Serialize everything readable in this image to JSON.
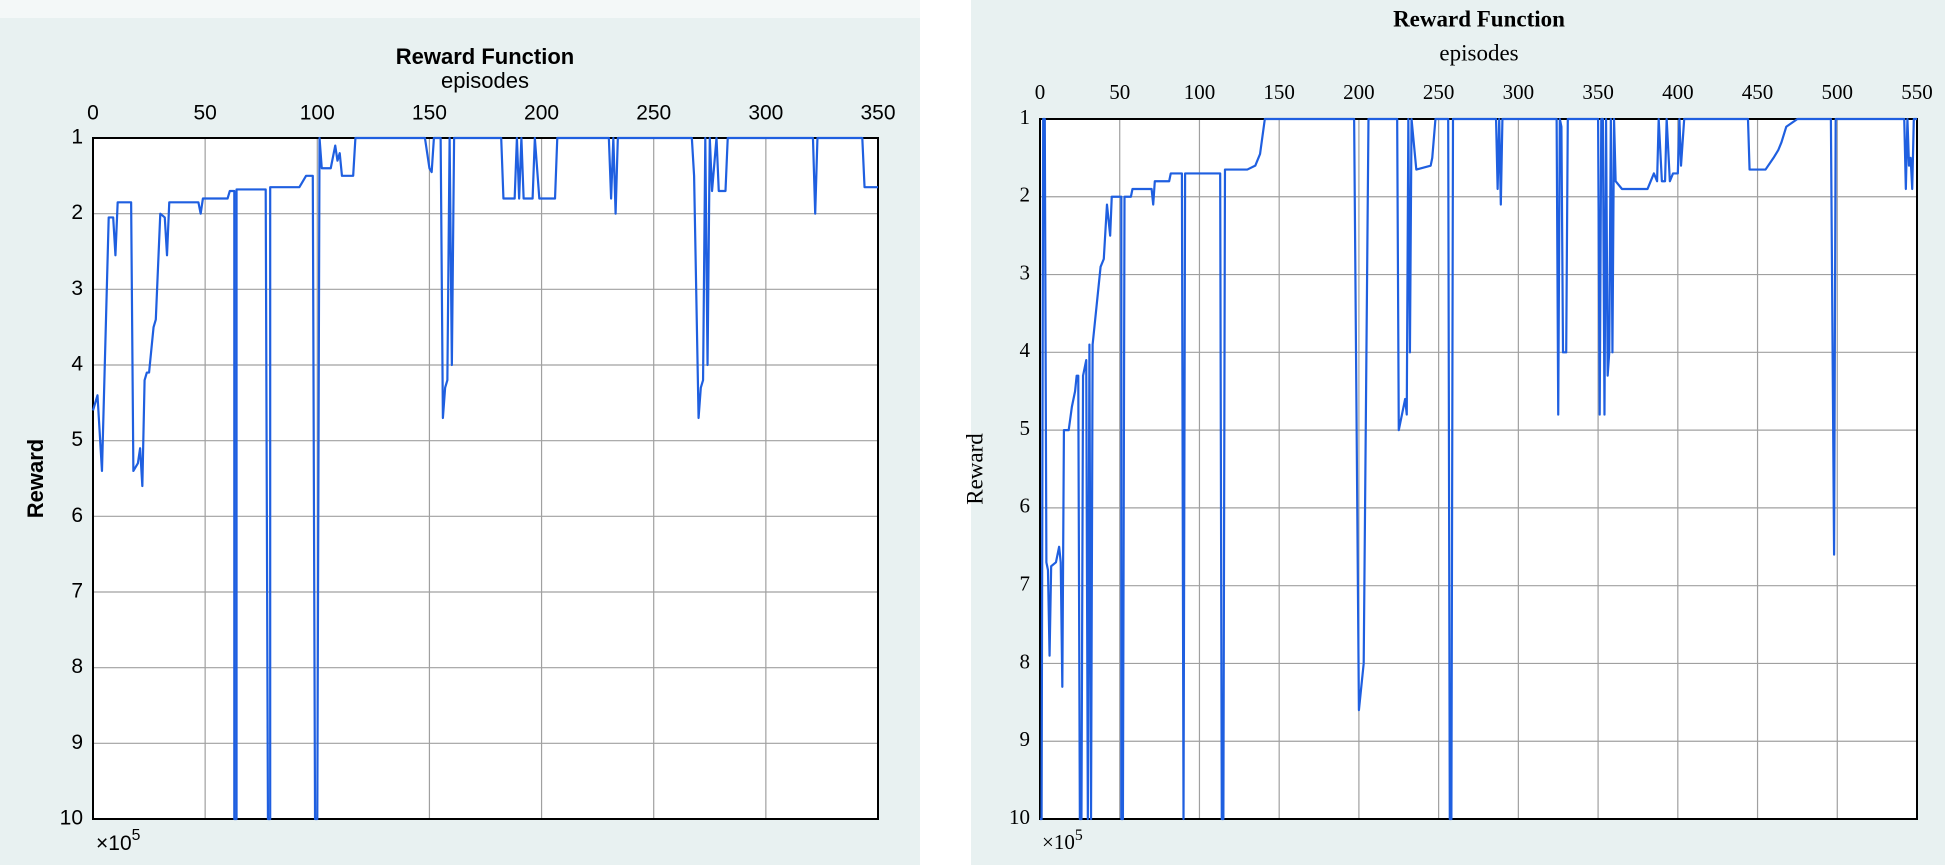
{
  "chart_data": [
    {
      "type": "line",
      "title": "Reward Function",
      "x_label": "episodes",
      "y_label": "Reward",
      "multiplier": {
        "base": "×10",
        "exponent": "5"
      },
      "xlim": [
        0,
        350
      ],
      "xticks": [
        0,
        50,
        100,
        150,
        200,
        250,
        300,
        350
      ],
      "ylim": [
        1,
        10
      ],
      "yticks": [
        1,
        2,
        3,
        4,
        5,
        6,
        7,
        8,
        9,
        10
      ],
      "y_reversed": true,
      "x_axis_top": true,
      "grid": true,
      "color": "#1f5fe0",
      "x": [
        0,
        2,
        4,
        7,
        9,
        10,
        11,
        17,
        18,
        20,
        21,
        22,
        23,
        24,
        25,
        27,
        28,
        30,
        32,
        33,
        34,
        47,
        48,
        49,
        60,
        61,
        63,
        63,
        64,
        64,
        77,
        78,
        79,
        79,
        92,
        93,
        95,
        98,
        99,
        100,
        101,
        102,
        106,
        108,
        109,
        110,
        111,
        116,
        117,
        148,
        150,
        151,
        152,
        155,
        156,
        157,
        158,
        159,
        160,
        161,
        182,
        183,
        188,
        189,
        190,
        191,
        192,
        196,
        197,
        199,
        206,
        207,
        230,
        231,
        232,
        233,
        234,
        267,
        268,
        270,
        271,
        272,
        273,
        274,
        275,
        276,
        278,
        279,
        282,
        283,
        321,
        322,
        323,
        343,
        344,
        350
      ],
      "values": [
        4.6,
        4.4,
        5.4,
        2.05,
        2.05,
        2.55,
        1.85,
        1.85,
        5.4,
        5.3,
        5.1,
        5.6,
        4.2,
        4.1,
        4.1,
        3.5,
        3.4,
        2.0,
        2.05,
        2.55,
        1.85,
        1.85,
        2.0,
        1.8,
        1.8,
        1.7,
        1.7,
        10,
        10,
        1.68,
        1.68,
        10,
        10,
        1.65,
        1.65,
        1.6,
        1.5,
        1.5,
        10,
        10,
        1.0,
        1.4,
        1.4,
        1.1,
        1.3,
        1.2,
        1.5,
        1.5,
        1.0,
        1.0,
        1.4,
        1.45,
        1.0,
        1.0,
        4.7,
        4.3,
        4.2,
        1.0,
        4.0,
        1.0,
        1.0,
        1.8,
        1.8,
        1.0,
        1.8,
        1.0,
        1.8,
        1.8,
        1.0,
        1.8,
        1.8,
        1.0,
        1.0,
        1.8,
        1.0,
        2.0,
        1.0,
        1.0,
        1.5,
        4.7,
        4.3,
        4.2,
        1.0,
        4.0,
        1.0,
        1.7,
        1.0,
        1.7,
        1.7,
        1.0,
        1.0,
        2.0,
        1.0,
        1.0,
        1.65,
        1.65
      ]
    },
    {
      "type": "line",
      "title": "Reward Function",
      "x_label": "episodes",
      "y_label": "Reward",
      "multiplier": {
        "base": "×10",
        "exponent": "5"
      },
      "xlim": [
        0,
        550
      ],
      "xticks": [
        0,
        50,
        100,
        150,
        200,
        250,
        300,
        350,
        400,
        450,
        500,
        550
      ],
      "ylim": [
        1,
        10
      ],
      "yticks": [
        1,
        2,
        3,
        4,
        5,
        6,
        7,
        8,
        9,
        10
      ],
      "y_reversed": true,
      "x_axis_top": true,
      "grid": true,
      "color": "#1f5fe0",
      "x": [
        0,
        1,
        2,
        3,
        4,
        5,
        6,
        7,
        10,
        12,
        13,
        14,
        15,
        18,
        20,
        22,
        23,
        24,
        25,
        26,
        27,
        29,
        30,
        31,
        32,
        33,
        38,
        40,
        42,
        44,
        45,
        51,
        51,
        52,
        53,
        57,
        58,
        70,
        71,
        72,
        81,
        82,
        89,
        90,
        91,
        113,
        114,
        115,
        116,
        130,
        135,
        138,
        141,
        197,
        200,
        203,
        206,
        224,
        225,
        227,
        229,
        230,
        231,
        232,
        233,
        236,
        245,
        246,
        248,
        256,
        257,
        258,
        259,
        286,
        287,
        288,
        289,
        290,
        324,
        325,
        326,
        327,
        328,
        330,
        331,
        350,
        351,
        352,
        353,
        354,
        355,
        356,
        357,
        358,
        359,
        360,
        361,
        365,
        381,
        383,
        385,
        387,
        388,
        390,
        392,
        393,
        395,
        397,
        400,
        401,
        402,
        404,
        444,
        445,
        455,
        460,
        463,
        465,
        468,
        475,
        496,
        498,
        499,
        542,
        543,
        544,
        545,
        546,
        547,
        548,
        550
      ],
      "values": [
        10,
        10,
        1.0,
        1.0,
        6.7,
        6.8,
        7.9,
        6.75,
        6.7,
        6.5,
        6.7,
        8.3,
        5.0,
        5.0,
        4.7,
        4.5,
        4.3,
        4.3,
        10,
        10,
        4.3,
        4.1,
        10,
        3.9,
        10,
        3.9,
        2.9,
        2.8,
        2.1,
        2.5,
        2.0,
        2.0,
        10,
        10,
        2.0,
        2.0,
        1.9,
        1.9,
        2.1,
        1.8,
        1.8,
        1.7,
        1.7,
        10,
        1.7,
        1.7,
        10,
        10,
        1.65,
        1.65,
        1.6,
        1.45,
        1.0,
        1.0,
        8.6,
        8.0,
        1.0,
        1.0,
        5.0,
        4.8,
        4.6,
        4.8,
        1.0,
        4.0,
        1.0,
        1.65,
        1.6,
        1.5,
        1.0,
        1.0,
        10,
        10,
        1.0,
        1.0,
        1.9,
        1.0,
        2.1,
        1.0,
        1.0,
        4.8,
        1.0,
        1.1,
        4.0,
        4.0,
        1.0,
        1.0,
        4.8,
        1.0,
        1.0,
        4.8,
        1.0,
        4.3,
        4.0,
        1.0,
        4.0,
        1.0,
        1.8,
        1.9,
        1.9,
        1.8,
        1.7,
        1.8,
        1.0,
        1.8,
        1.8,
        1.0,
        1.8,
        1.7,
        1.7,
        1.0,
        1.6,
        1.0,
        1.0,
        1.65,
        1.65,
        1.5,
        1.4,
        1.3,
        1.1,
        1.0,
        1.0,
        6.6,
        1.0,
        1.0,
        1.9,
        1.0,
        1.6,
        1.5,
        1.9,
        1.0,
        1.0
      ]
    }
  ]
}
